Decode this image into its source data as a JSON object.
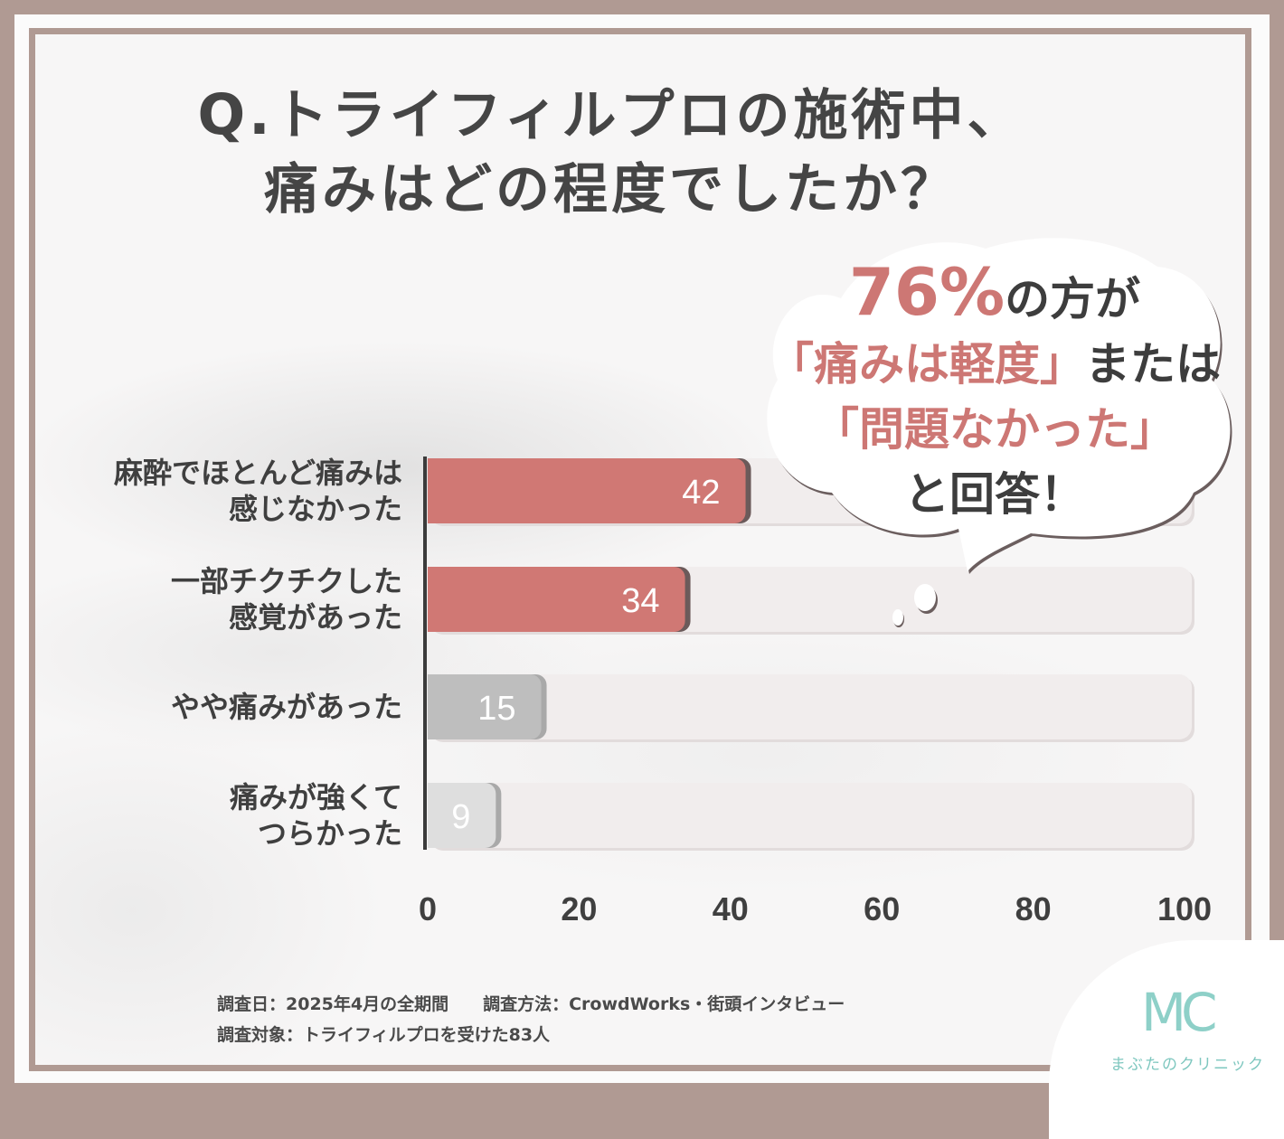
{
  "title": {
    "q_mark": "Q.",
    "line1": "トライフィルプロの施術中、",
    "line2": "痛みはどの程度でしたか？"
  },
  "callout": {
    "percent": "76%",
    "line1_rest": "の方が",
    "line2_quote": "「痛みは軽度」",
    "line2_rest": "または",
    "line3_quote": "「問題なかった」",
    "line4": "と回答！"
  },
  "chart_data": {
    "type": "bar",
    "orientation": "horizontal",
    "categories": [
      "麻酔でほとんど痛みは\n感じなかった",
      "一部チクチクした\n感覚があった",
      "やや痛みがあった",
      "痛みが強くて\nつらかった"
    ],
    "values": [
      42,
      34,
      15,
      9
    ],
    "data_labels": [
      "42",
      "34",
      "15",
      "9"
    ],
    "xlim": [
      0,
      100
    ],
    "x_ticks": [
      "0",
      "20",
      "40",
      "60",
      "80",
      "100"
    ],
    "colors": {
      "highlight": "#d07874",
      "highlight_shadow": "#6b5a5a",
      "muted": "#bebebe",
      "muted_light": "#dedede",
      "muted_shadow": "#a9a9a9",
      "track": "#f1eded",
      "axis": "#3b3b3b"
    },
    "bar_colors": [
      "highlight",
      "highlight",
      "muted",
      "muted_light"
    ]
  },
  "footer": {
    "line1": "調査日：2025年4月の全期間　　調査方法：CrowdWorks・街頭インタビュー",
    "line2": "調査対象：トライフィルプロを受けた83人"
  },
  "logo": {
    "mark": "MC",
    "name": "まぶたのクリニック",
    "color": "#8ed0c8"
  }
}
